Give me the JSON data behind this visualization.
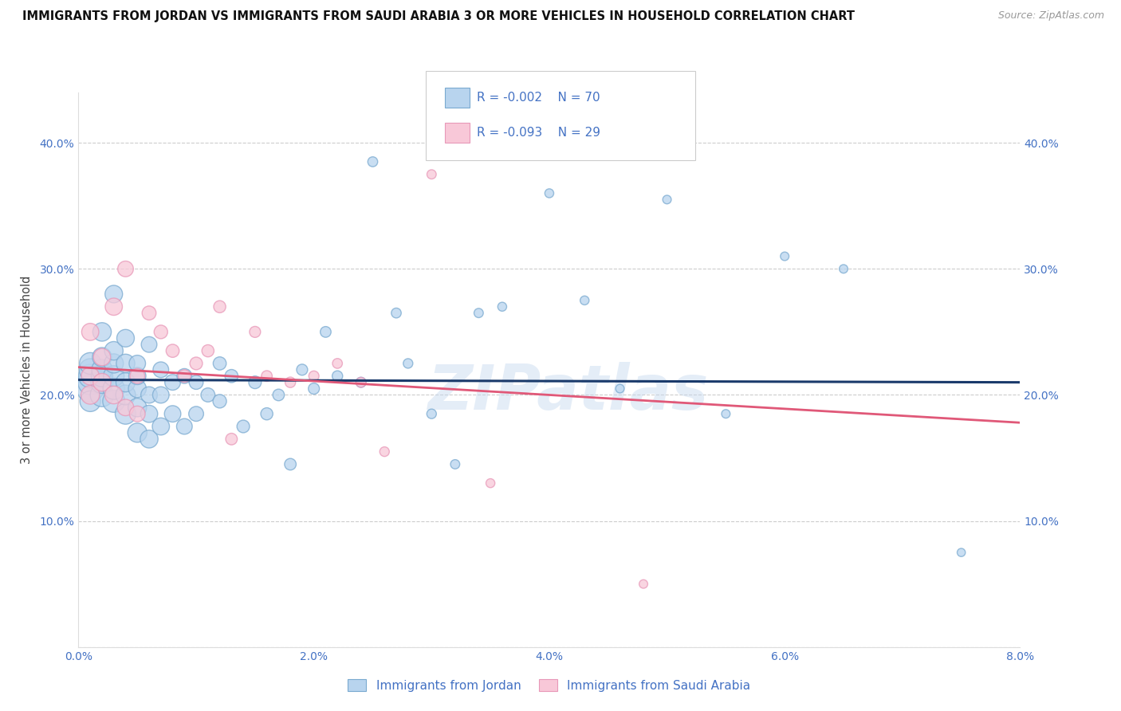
{
  "title": "IMMIGRANTS FROM JORDAN VS IMMIGRANTS FROM SAUDI ARABIA 3 OR MORE VEHICLES IN HOUSEHOLD CORRELATION CHART",
  "source": "Source: ZipAtlas.com",
  "ylabel": "3 or more Vehicles in Household",
  "legend_label_1": "Immigrants from Jordan",
  "legend_label_2": "Immigrants from Saudi Arabia",
  "R1": -0.002,
  "N1": 70,
  "R2": -0.093,
  "N2": 29,
  "color1_face": "#b8d4ee",
  "color1_edge": "#7aaad0",
  "color2_face": "#f8c8d8",
  "color2_edge": "#e898b8",
  "line_color1": "#1a3a6b",
  "line_color2": "#e05878",
  "xlim": [
    0.0,
    0.08
  ],
  "ylim": [
    0.0,
    0.44
  ],
  "xticks": [
    0.0,
    0.02,
    0.04,
    0.06,
    0.08
  ],
  "yticks": [
    0.0,
    0.1,
    0.2,
    0.3,
    0.4
  ],
  "xtick_labels": [
    "0.0%",
    "2.0%",
    "4.0%",
    "6.0%",
    "8.0%"
  ],
  "ytick_labels": [
    "",
    "10.0%",
    "20.0%",
    "30.0%",
    "40.0%"
  ],
  "watermark": "ZIPatlas",
  "jordan_x": [
    0.001,
    0.001,
    0.001,
    0.001,
    0.001,
    0.001,
    0.002,
    0.002,
    0.002,
    0.002,
    0.002,
    0.002,
    0.003,
    0.003,
    0.003,
    0.003,
    0.003,
    0.003,
    0.004,
    0.004,
    0.004,
    0.004,
    0.004,
    0.005,
    0.005,
    0.005,
    0.005,
    0.005,
    0.006,
    0.006,
    0.006,
    0.006,
    0.007,
    0.007,
    0.007,
    0.008,
    0.008,
    0.009,
    0.009,
    0.01,
    0.01,
    0.011,
    0.012,
    0.012,
    0.013,
    0.014,
    0.015,
    0.016,
    0.017,
    0.018,
    0.019,
    0.02,
    0.021,
    0.022,
    0.024,
    0.025,
    0.027,
    0.028,
    0.03,
    0.032,
    0.034,
    0.036,
    0.04,
    0.043,
    0.046,
    0.05,
    0.055,
    0.06,
    0.065,
    0.075
  ],
  "jordan_y": [
    0.205,
    0.21,
    0.215,
    0.22,
    0.225,
    0.195,
    0.2,
    0.21,
    0.215,
    0.22,
    0.23,
    0.25,
    0.195,
    0.205,
    0.215,
    0.225,
    0.235,
    0.28,
    0.185,
    0.2,
    0.21,
    0.225,
    0.245,
    0.17,
    0.19,
    0.205,
    0.215,
    0.225,
    0.165,
    0.185,
    0.2,
    0.24,
    0.175,
    0.2,
    0.22,
    0.185,
    0.21,
    0.175,
    0.215,
    0.185,
    0.21,
    0.2,
    0.195,
    0.225,
    0.215,
    0.175,
    0.21,
    0.185,
    0.2,
    0.145,
    0.22,
    0.205,
    0.25,
    0.215,
    0.21,
    0.385,
    0.265,
    0.225,
    0.185,
    0.145,
    0.265,
    0.27,
    0.36,
    0.275,
    0.205,
    0.355,
    0.185,
    0.31,
    0.3,
    0.075
  ],
  "jordan_s": [
    600,
    500,
    450,
    400,
    380,
    350,
    450,
    400,
    380,
    350,
    300,
    280,
    400,
    380,
    350,
    300,
    280,
    250,
    350,
    320,
    300,
    280,
    250,
    300,
    280,
    260,
    240,
    220,
    260,
    240,
    220,
    200,
    240,
    220,
    200,
    220,
    200,
    200,
    180,
    180,
    160,
    160,
    150,
    140,
    140,
    130,
    130,
    120,
    110,
    110,
    100,
    100,
    95,
    90,
    85,
    80,
    80,
    75,
    75,
    70,
    70,
    65,
    65,
    65,
    60,
    60,
    60,
    60,
    60,
    55
  ],
  "saudi_x": [
    0.001,
    0.001,
    0.001,
    0.002,
    0.002,
    0.003,
    0.003,
    0.004,
    0.004,
    0.005,
    0.005,
    0.006,
    0.007,
    0.008,
    0.009,
    0.01,
    0.011,
    0.012,
    0.013,
    0.015,
    0.016,
    0.018,
    0.02,
    0.022,
    0.024,
    0.026,
    0.03,
    0.035,
    0.048
  ],
  "saudi_y": [
    0.2,
    0.215,
    0.25,
    0.21,
    0.23,
    0.2,
    0.27,
    0.19,
    0.3,
    0.185,
    0.215,
    0.265,
    0.25,
    0.235,
    0.215,
    0.225,
    0.235,
    0.27,
    0.165,
    0.25,
    0.215,
    0.21,
    0.215,
    0.225,
    0.21,
    0.155,
    0.375,
    0.13,
    0.05
  ],
  "saudi_s": [
    280,
    260,
    240,
    260,
    240,
    260,
    240,
    220,
    200,
    200,
    180,
    160,
    150,
    140,
    130,
    130,
    120,
    120,
    110,
    100,
    95,
    90,
    85,
    80,
    80,
    75,
    70,
    65,
    60
  ],
  "trendline1_x": [
    0.0,
    0.08
  ],
  "trendline1_y": [
    0.212,
    0.21
  ],
  "trendline2_x": [
    0.0,
    0.08
  ],
  "trendline2_y": [
    0.222,
    0.178
  ]
}
